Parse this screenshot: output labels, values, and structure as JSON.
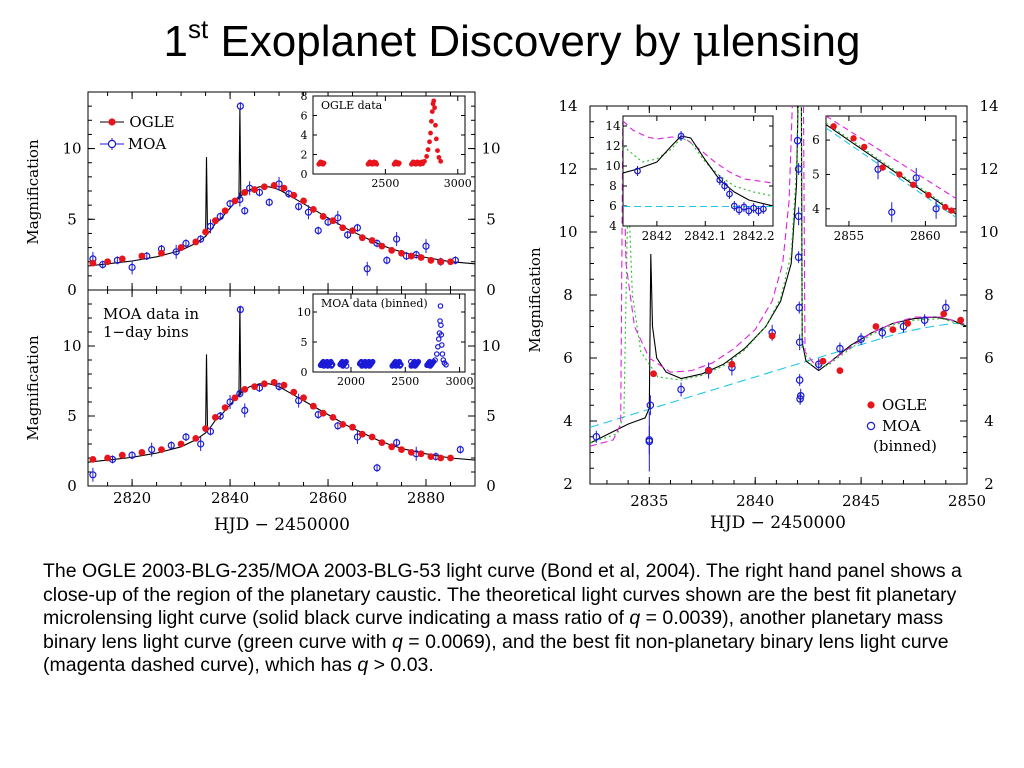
{
  "title": {
    "ordinal": "1",
    "ordinal_suffix": "st",
    "text": "Exoplanet Discovery by ",
    "mu": "μ",
    "tail": "lensing"
  },
  "caption": {
    "p1": "The OGLE 2003-BLG-235/MOA 2003-BLG-53 light curve (Bond et al, 2004). The right hand panel shows a close-up of the region of the planetary caustic. The theoretical light curves shown are the best fit planetary microlensing light curve (solid black curve indicating a mass ratio of ",
    "q1": "q",
    "p2": " = 0.0039), another planetary mass binary lens light curve (green curve with ",
    "q2": "q",
    "p3": " = 0.0069), and the best fit non-planetary binary lens light curve (magenta dashed curve), which has ",
    "q3": "q",
    "p4": " > 0.03."
  },
  "colors": {
    "ogle": "#e8141c",
    "moa": "#1a1ad6",
    "model_black": "#000000",
    "model_green": "#20c020",
    "model_magenta": "#e020e0",
    "model_cyan": "#20c8e8"
  },
  "chart_data": [
    {
      "id": "top-left",
      "type": "scatter",
      "xlabel": "",
      "ylabel": "Magnification",
      "xlim": [
        2811,
        2890
      ],
      "ylim": [
        0,
        14
      ],
      "yticks": [
        "0",
        "5",
        "10"
      ],
      "legend": {
        "placement": "top-left",
        "entries": [
          "OGLE",
          "MOA"
        ]
      },
      "series": [
        {
          "name": "OGLE",
          "marker": "filled-circle",
          "x": [
            2812,
            2815,
            2818,
            2822,
            2826,
            2830,
            2833,
            2835,
            2837,
            2839,
            2841,
            2843,
            2845,
            2847,
            2849,
            2851,
            2853,
            2855,
            2857,
            2859,
            2861,
            2863,
            2865,
            2867,
            2869,
            2871,
            2873,
            2875,
            2877,
            2879,
            2881,
            2883,
            2885
          ],
          "y": [
            1.9,
            2.0,
            2.2,
            2.4,
            2.6,
            3.0,
            3.4,
            4.1,
            4.9,
            5.6,
            6.3,
            6.9,
            7.1,
            7.3,
            7.4,
            7.2,
            6.7,
            6.3,
            5.7,
            5.2,
            4.9,
            4.4,
            4.2,
            3.7,
            3.5,
            3.1,
            2.8,
            2.6,
            2.4,
            2.3,
            2.1,
            2.0,
            2.0
          ]
        },
        {
          "name": "MOA",
          "marker": "open-circle",
          "x": [
            2812,
            2814,
            2817,
            2820,
            2823,
            2826,
            2829,
            2831,
            2834,
            2836,
            2838,
            2840,
            2842,
            2842.1,
            2843,
            2844,
            2846,
            2848,
            2850,
            2852,
            2854,
            2856,
            2858,
            2860,
            2862,
            2864,
            2866,
            2868,
            2870,
            2872,
            2874,
            2876,
            2878,
            2880,
            2883,
            2886
          ],
          "y": [
            2.2,
            1.8,
            2.1,
            1.6,
            2.4,
            2.9,
            2.7,
            3.3,
            3.6,
            4.5,
            5.2,
            6.1,
            6.4,
            13.0,
            5.6,
            7.2,
            6.9,
            6.2,
            7.5,
            6.8,
            5.9,
            5.5,
            4.2,
            4.8,
            5.1,
            3.9,
            4.4,
            1.5,
            3.3,
            2.1,
            3.6,
            2.4,
            2.5,
            3.1,
            2.0,
            2.1
          ]
        }
      ],
      "models": [
        {
          "name": "best fit",
          "color": "#000000",
          "style": "solid",
          "x": [
            2811,
            2815,
            2820,
            2825,
            2830,
            2833,
            2835,
            2836,
            2837,
            2838,
            2840,
            2842,
            2844,
            2846,
            2848,
            2850,
            2852,
            2855,
            2858,
            2861,
            2864,
            2867,
            2870,
            2873,
            2876,
            2880,
            2885,
            2890
          ],
          "y": [
            1.7,
            1.85,
            2.05,
            2.35,
            2.8,
            3.3,
            3.8,
            4.2,
            4.7,
            5.0,
            5.8,
            6.6,
            7.1,
            7.3,
            7.3,
            7.1,
            6.7,
            6.1,
            5.5,
            4.9,
            4.3,
            3.8,
            3.3,
            2.9,
            2.6,
            2.3,
            2.0,
            1.85
          ]
        }
      ],
      "inset": {
        "label": "OGLE data",
        "xlim": [
          2000,
          3050
        ],
        "ylim": [
          0,
          8
        ],
        "xticks": [
          "2500",
          "3000"
        ],
        "yticks": [
          "0",
          "2",
          "4",
          "6",
          "8"
        ]
      }
    },
    {
      "id": "bottom-left",
      "type": "scatter",
      "xlabel": "HJD − 2450000",
      "ylabel": "Magnification",
      "xlim": [
        2811,
        2890
      ],
      "ylim": [
        0,
        14
      ],
      "xticks": [
        "2820",
        "2840",
        "2860",
        "2880"
      ],
      "yticks": [
        "0",
        "5",
        "10"
      ],
      "annotation": [
        "MOA data in",
        "1−day bins"
      ],
      "series": [
        {
          "name": "OGLE",
          "marker": "filled-circle",
          "x": [
            2812,
            2815,
            2818,
            2822,
            2826,
            2830,
            2833,
            2835,
            2837,
            2839,
            2841,
            2843,
            2845,
            2847,
            2849,
            2851,
            2853,
            2855,
            2857,
            2859,
            2861,
            2863,
            2865,
            2867,
            2869,
            2871,
            2873,
            2875,
            2877,
            2879,
            2881,
            2883,
            2885
          ],
          "y": [
            1.9,
            2.0,
            2.2,
            2.4,
            2.6,
            3.0,
            3.4,
            4.1,
            4.9,
            5.6,
            6.3,
            6.9,
            7.1,
            7.3,
            7.4,
            7.2,
            6.7,
            6.3,
            5.7,
            5.2,
            4.9,
            4.4,
            4.2,
            3.7,
            3.5,
            3.1,
            2.8,
            2.6,
            2.4,
            2.3,
            2.1,
            2.0,
            2.0
          ]
        },
        {
          "name": "MOA",
          "marker": "open-circle",
          "x": [
            2812,
            2816,
            2820,
            2824,
            2828,
            2831,
            2834,
            2836,
            2838,
            2840,
            2842,
            2842.1,
            2843,
            2846,
            2850,
            2854,
            2858,
            2862,
            2866,
            2870,
            2874,
            2878,
            2882,
            2887
          ],
          "y": [
            0.8,
            1.9,
            2.2,
            2.6,
            2.9,
            3.5,
            3.0,
            3.9,
            5.0,
            6.0,
            6.6,
            12.6,
            5.4,
            7.0,
            7.1,
            6.1,
            5.1,
            4.3,
            3.5,
            1.3,
            3.1,
            2.3,
            2.1,
            2.6
          ]
        }
      ],
      "models": [
        {
          "name": "best fit",
          "color": "#000000",
          "style": "solid",
          "x": [
            2811,
            2815,
            2820,
            2825,
            2830,
            2833,
            2835,
            2836,
            2837,
            2838,
            2840,
            2842,
            2844,
            2846,
            2848,
            2850,
            2852,
            2855,
            2858,
            2861,
            2864,
            2867,
            2870,
            2873,
            2876,
            2880,
            2885,
            2890
          ],
          "y": [
            1.7,
            1.85,
            2.05,
            2.35,
            2.8,
            3.3,
            3.8,
            4.2,
            4.7,
            5.0,
            5.8,
            6.6,
            7.1,
            7.3,
            7.3,
            7.1,
            6.7,
            6.1,
            5.5,
            4.9,
            4.3,
            3.8,
            3.3,
            2.9,
            2.6,
            2.3,
            2.0,
            1.85
          ]
        }
      ],
      "inset": {
        "label": "MOA data (binned)",
        "xlim": [
          1650,
          3050
        ],
        "ylim": [
          0,
          13
        ],
        "xticks": [
          "2000",
          "2500",
          "3000"
        ],
        "yticks": [
          "0",
          "5",
          "10"
        ]
      }
    },
    {
      "id": "right",
      "type": "scatter",
      "xlabel": "HJD − 2450000",
      "ylabel": "Magnification",
      "xlim": [
        2832.2,
        2850
      ],
      "ylim": [
        2,
        14
      ],
      "xticks": [
        "2835",
        "2840",
        "2845",
        "2850"
      ],
      "yticks": [
        "2",
        "4",
        "6",
        "8",
        "10",
        "12",
        "14"
      ],
      "legend": {
        "placement": "bottom-right",
        "entries": [
          "OGLE",
          "MOA",
          "(binned)"
        ]
      },
      "series": [
        {
          "name": "OGLE",
          "marker": "filled-circle",
          "x": [
            2835.2,
            2837.8,
            2838.9,
            2840.8,
            2843.2,
            2844.0,
            2845.7,
            2846.5,
            2847.2,
            2848.9,
            2849.7
          ],
          "y": [
            5.5,
            5.6,
            5.8,
            6.7,
            5.9,
            5.6,
            7.0,
            6.9,
            7.1,
            7.4,
            7.2
          ]
        },
        {
          "name": "MOA (binned)",
          "marker": "open-circle",
          "x": [
            2832.5,
            2835.0,
            2835.05,
            2836.5,
            2837.8,
            2838.9,
            2840.8,
            2842.0,
            2842.05,
            2842.1,
            2842.15,
            2843.0,
            2844.0,
            2845.0,
            2846.0,
            2847.0,
            2848.0,
            2849.0
          ],
          "y": [
            3.5,
            3.4,
            4.5,
            5.0,
            5.6,
            5.7,
            6.8,
            12.9,
            10.5,
            6.5,
            4.8,
            5.8,
            6.3,
            6.6,
            6.8,
            7.0,
            7.2,
            7.6
          ]
        }
      ],
      "models": [
        {
          "name": "q = 0.0039",
          "color": "#000000",
          "style": "solid"
        },
        {
          "name": "q = 0.0069",
          "color": "#20c020",
          "style": "dotted"
        },
        {
          "name": "q > 0.03",
          "color": "#e020e0",
          "style": "dashed"
        },
        {
          "name": "single lens",
          "color": "#20c8e8",
          "style": "dashed"
        }
      ],
      "insets": [
        {
          "id": "inset-a",
          "xlim": [
            2841.93,
            2842.24
          ],
          "ylim": [
            4,
            15
          ],
          "xticks": [
            "2842",
            "2842.1",
            "2842.2"
          ],
          "yticks": [
            "4",
            "6",
            "8",
            "10",
            "12",
            "14"
          ]
        },
        {
          "id": "inset-b",
          "xlim": [
            2853.5,
            2862
          ],
          "ylim": [
            3.5,
            6.7
          ],
          "xticks": [
            "2855",
            "2860"
          ],
          "yticks": [
            "4",
            "5",
            "6"
          ]
        }
      ]
    }
  ]
}
